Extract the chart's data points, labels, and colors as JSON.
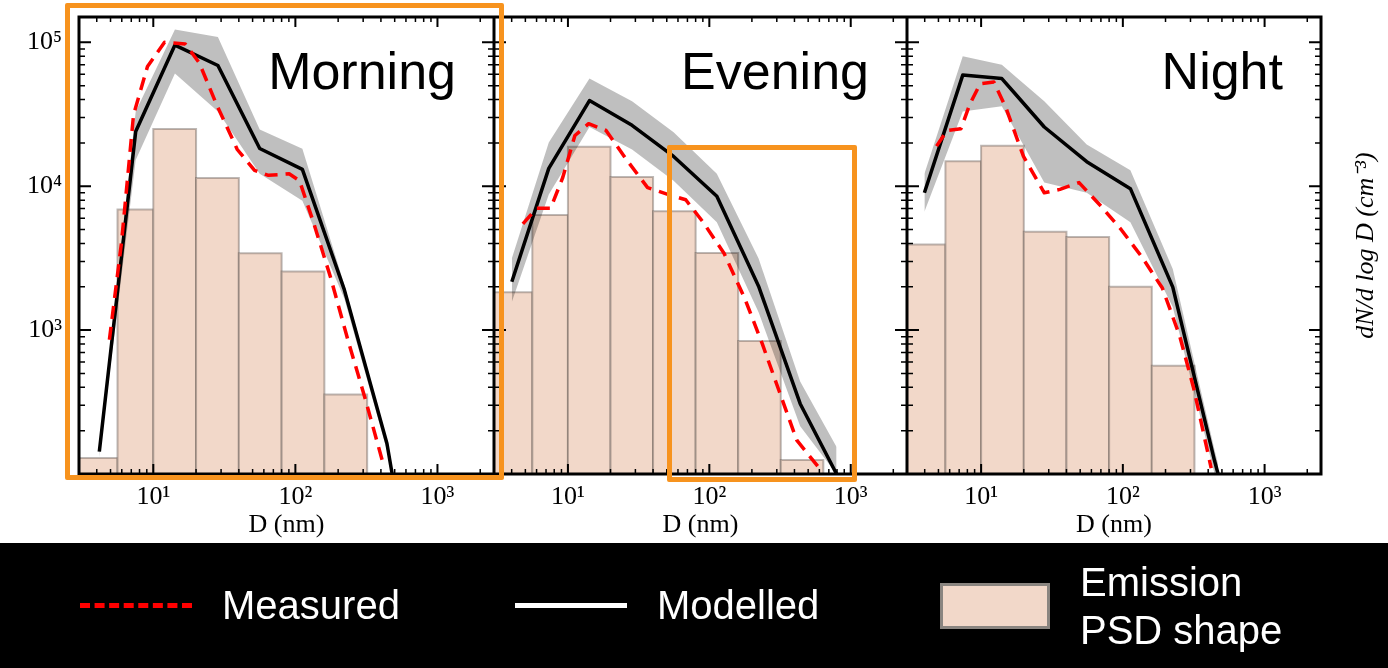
{
  "chart_data": [
    {
      "type": "histogram",
      "title": "Morning",
      "xlabel": "D (nm)",
      "log": "xy",
      "xlim": [
        3,
        2500
      ],
      "ylim": [
        100,
        150000
      ],
      "xticks": [
        {
          "value": 10,
          "label": "10¹"
        },
        {
          "value": 100,
          "label": "10²"
        },
        {
          "value": 1000,
          "label": "10³"
        }
      ],
      "yticks": [
        {
          "value": 1000,
          "label": "10³"
        },
        {
          "value": 10000,
          "label": "10⁴"
        },
        {
          "value": 100000,
          "label": "10⁵"
        }
      ],
      "grid": false,
      "legend": "bottom",
      "series": [
        {
          "type": "histogram",
          "name": "Emission PSD shape",
          "color": "#f2d8c9",
          "bins": [
            3,
            5.6,
            10,
            20,
            40,
            80,
            160,
            320
          ],
          "values": [
            129,
            6900,
            25000,
            11400,
            3420,
            2550,
            357
          ]
        },
        {
          "type": "line",
          "name": "Measured",
          "color": "#ff0000",
          "line_style": "dashed",
          "x": [
            4.91,
            5.97,
            7.26,
            9.1,
            12,
            16.8,
            21.1,
            27.9,
            39,
            51.6,
            64.6,
            90.4,
            107,
            134,
            177,
            234,
            310,
            410
          ],
          "values": [
            857,
            4040,
            31300,
            67900,
            100000,
            97300,
            71800,
            36900,
            18000,
            12900,
            11900,
            12200,
            10900,
            5620,
            2320,
            857,
            334,
            123
          ]
        },
        {
          "type": "line",
          "name": "Modelled",
          "color": "#000000",
          "line_style": "solid",
          "x": [
            4.17,
            7.52,
            14.2,
            28.5,
            56.1,
            112,
            221,
            441,
            480
          ],
          "values": [
            143,
            24000,
            95700,
            69000,
            18300,
            13100,
            1910,
            163,
            100
          ],
          "lower": [
            130,
            15200,
            60800,
            33000,
            12200,
            7930,
            1660,
            146,
            100
          ],
          "upper": [
            154,
            33000,
            123000,
            109000,
            24800,
            18200,
            2070,
            172,
            110
          ]
        }
      ]
    },
    {
      "type": "histogram",
      "title": "Evening",
      "xlabel": "D (nm)",
      "log": "xy",
      "xlim": [
        3,
        2500
      ],
      "ylim": [
        100,
        150000
      ],
      "xticks": [
        {
          "value": 10,
          "label": "10¹"
        },
        {
          "value": 100,
          "label": "10²"
        },
        {
          "value": 1000,
          "label": "10³"
        }
      ],
      "yticks": [
        {
          "value": 1000,
          "label": null
        },
        {
          "value": 10000,
          "label": null
        },
        {
          "value": 100000,
          "label": null
        }
      ],
      "tick_labels": "x",
      "grid": false,
      "series": [
        {
          "type": "histogram",
          "color": "#f2d8c9",
          "bins": [
            3,
            5.6,
            10,
            20,
            40,
            80,
            160,
            320,
            640
          ],
          "values": [
            1830,
            6310,
            18800,
            11600,
            6710,
            3430,
            841,
            125
          ]
        },
        {
          "type": "line",
          "color": "#ff0000",
          "line_style": "dashed",
          "x": [
            4.8,
            6.01,
            7.54,
            9.19,
            11.2,
            14,
            18.6,
            26.1,
            36.6,
            51.4,
            68.1,
            90.4,
            127,
            178,
            236,
            313,
            415,
            598
          ],
          "values": [
            5470,
            7020,
            7020,
            11500,
            22500,
            27200,
            24400,
            15200,
            9780,
            8750,
            8050,
            5620,
            3420,
            1660,
            811,
            373,
            172,
            110
          ]
        },
        {
          "type": "line",
          "color": "#000000",
          "line_style": "solid",
          "x": [
            4.01,
            7.32,
            14.2,
            28.4,
            55.9,
            113,
            223,
            439,
            794
          ],
          "values": [
            2170,
            13300,
            39400,
            26500,
            16100,
            8520,
            2020,
            308,
            100
          ],
          "lower": [
            1570,
            8750,
            25800,
            18000,
            10900,
            5620,
            1330,
            215,
            100
          ],
          "upper": [
            3150,
            20100,
            56000,
            39000,
            23700,
            12200,
            3150,
            440,
            154
          ]
        }
      ]
    },
    {
      "type": "histogram",
      "title": "Night",
      "xlabel": "D (nm)",
      "ylabel": "dN/d log D (cm⁻³)",
      "log": "xy",
      "xlim": [
        3,
        2500
      ],
      "ylim": [
        100,
        150000
      ],
      "xticks": [
        {
          "value": 10,
          "label": "10¹"
        },
        {
          "value": 100,
          "label": "10²"
        },
        {
          "value": 1000,
          "label": "10³"
        }
      ],
      "yticks": [
        {
          "value": 1000,
          "label": null
        },
        {
          "value": 10000,
          "label": null
        },
        {
          "value": 100000,
          "label": null
        }
      ],
      "tick_labels": "x",
      "grid": false,
      "series": [
        {
          "type": "histogram",
          "color": "#f2d8c9",
          "bins": [
            3,
            5.6,
            10,
            20,
            40,
            80,
            160,
            320
          ],
          "values": [
            3930,
            14900,
            19100,
            4820,
            4440,
            2000,
            565
          ]
        },
        {
          "type": "line",
          "color": "#ff0000",
          "line_style": "dashed",
          "x": [
            4.85,
            5.75,
            7.21,
            8.3,
            9.84,
            12.3,
            15,
            19.9,
            27.9,
            36,
            49.1,
            68.9,
            96.6,
            136,
            190,
            252,
            316,
            420
          ],
          "values": [
            19000,
            24400,
            25100,
            36900,
            51500,
            53000,
            34900,
            16100,
            9000,
            9510,
            10600,
            7410,
            5040,
            3230,
            1960,
            906,
            394,
            110
          ]
        },
        {
          "type": "line",
          "color": "#000000",
          "line_style": "solid",
          "x": [
            3.98,
            7.42,
            14,
            27.9,
            55.6,
            113,
            225,
            444,
            470
          ],
          "values": [
            9000,
            59200,
            56000,
            25800,
            14800,
            9620,
            1990,
            123,
            100
          ],
          "lower": [
            6640,
            33000,
            35900,
            10600,
            9000,
            5620,
            1450,
            100,
            100
          ],
          "upper": [
            12200,
            80100,
            69800,
            39000,
            19500,
            12900,
            2660,
            146,
            117
          ]
        }
      ]
    }
  ]
}
